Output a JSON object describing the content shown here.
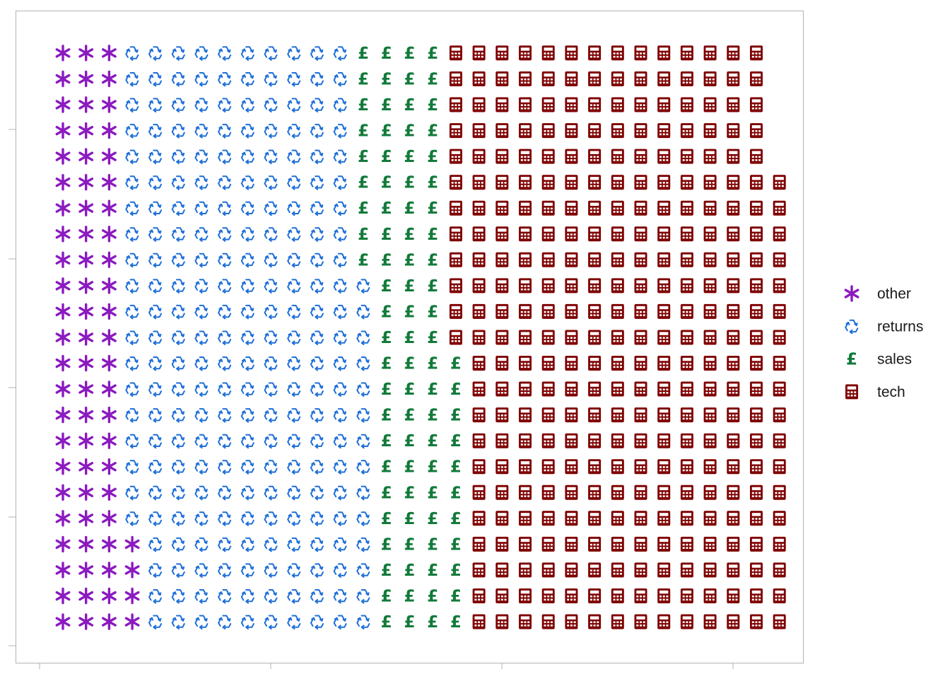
{
  "chart_data": {
    "type": "waffle",
    "title": "",
    "xlabel": "",
    "ylabel": "",
    "grid": false,
    "legend_position": "right",
    "rows": 23,
    "counts_by_column": true,
    "series": [
      {
        "name": "other",
        "value": 73,
        "color": "#8B1ABF",
        "icon": "asterisk-icon"
      },
      {
        "name": "returns",
        "value": 240,
        "color": "#1E6FD9",
        "icon": "recycle-icon"
      },
      {
        "name": "sales",
        "value": 89,
        "color": "#127A3A",
        "icon": "pound-sign-icon"
      },
      {
        "name": "tech",
        "value": 329,
        "color": "#7F0000",
        "icon": "calculator-icon"
      }
    ]
  }
}
